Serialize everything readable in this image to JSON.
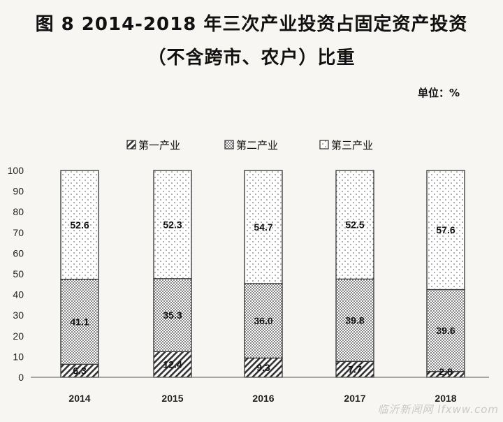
{
  "title_line1": "图 8   2014-2018 年三次产业投资占固定资产投资",
  "title_line2": "（不含跨市、农户）比重",
  "unit": "单位：%",
  "watermark": "临沂新闻网 lfxww.com",
  "colors": {
    "bar_outline": "#333333",
    "background": "#f7f6f3"
  },
  "chart_data": {
    "type": "bar",
    "stacked": true,
    "categories": [
      "2014",
      "2015",
      "2016",
      "2017",
      "2018"
    ],
    "series": [
      {
        "name": "第一产业",
        "pattern": "diagonal-hatch",
        "values": [
          6.3,
          12.4,
          9.3,
          7.7,
          2.8
        ]
      },
      {
        "name": "第二产业",
        "pattern": "dense-dots",
        "values": [
          41.1,
          35.3,
          36.0,
          39.8,
          39.6
        ]
      },
      {
        "name": "第三产业",
        "pattern": "sparse-dots",
        "values": [
          52.6,
          52.3,
          54.7,
          52.5,
          57.6
        ]
      }
    ],
    "data_labels": [
      [
        "6.3",
        "12.4",
        "9.3",
        "7.7",
        "2.8"
      ],
      [
        "41.1",
        "35.3",
        "36.0",
        "39.8",
        "39.6"
      ],
      [
        "52.6",
        "52.3",
        "54.7",
        "52.5",
        "57.6"
      ]
    ],
    "ylim": [
      0,
      100
    ],
    "yticks": [
      "0",
      "10",
      "20",
      "30",
      "40",
      "50",
      "60",
      "70",
      "80",
      "90",
      "100"
    ],
    "legend_position": "top",
    "grid": false
  }
}
